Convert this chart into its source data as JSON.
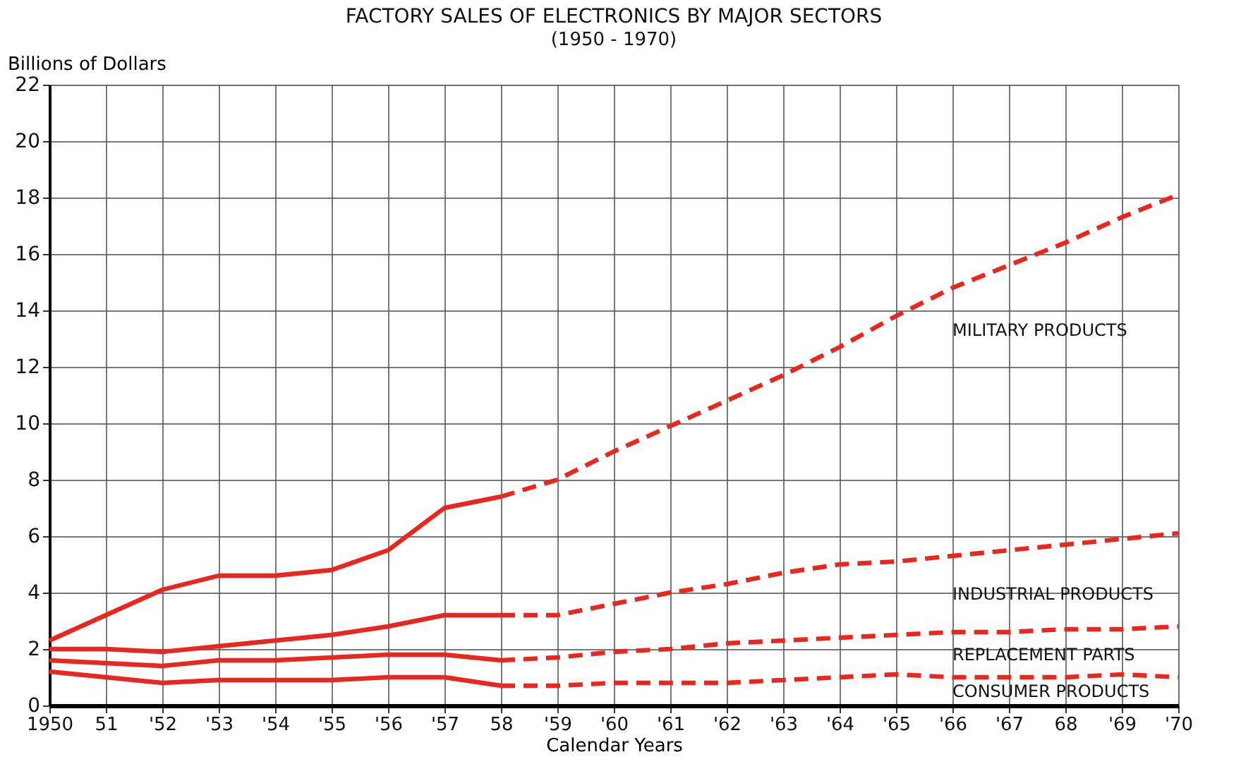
{
  "chart_data": {
    "type": "line",
    "title": "FACTORY SALES OF ELECTRONICS BY MAJOR SECTORS",
    "subtitle": "(1950 - 1970)",
    "xlabel": "Calendar Years",
    "ylabel": "Billions of Dollars",
    "xlim": [
      1950,
      1970
    ],
    "xticks": [
      {
        "value": 1950,
        "label": "1950"
      },
      {
        "value": 1951,
        "label": "51"
      },
      {
        "value": 1952,
        "label": "'52"
      },
      {
        "value": 1953,
        "label": "'53"
      },
      {
        "value": 1954,
        "label": "'54"
      },
      {
        "value": 1955,
        "label": "'55"
      },
      {
        "value": 1956,
        "label": "'56"
      },
      {
        "value": 1957,
        "label": "'57"
      },
      {
        "value": 1958,
        "label": "58"
      },
      {
        "value": 1959,
        "label": "'59"
      },
      {
        "value": 1960,
        "label": "'60"
      },
      {
        "value": 1961,
        "label": "'61"
      },
      {
        "value": 1962,
        "label": "'62"
      },
      {
        "value": 1963,
        "label": "'63"
      },
      {
        "value": 1964,
        "label": "'64"
      },
      {
        "value": 1965,
        "label": "'65"
      },
      {
        "value": 1966,
        "label": "'66"
      },
      {
        "value": 1967,
        "label": "'67"
      },
      {
        "value": 1968,
        "label": "68"
      },
      {
        "value": 1969,
        "label": "'69"
      },
      {
        "value": 1970,
        "label": "'70"
      }
    ],
    "ylim": [
      0,
      22
    ],
    "yticks": [
      0,
      2,
      4,
      6,
      8,
      10,
      12,
      14,
      16,
      18,
      20,
      22
    ],
    "grid": true,
    "series": [
      {
        "color": "#e8281e",
        "line_style": "solid",
        "x": [
          1950,
          1951,
          1952,
          1953,
          1954,
          1955,
          1956,
          1957,
          1958
        ],
        "values": [
          2.3,
          3.2,
          4.1,
          4.6,
          4.6,
          4.8,
          5.5,
          7.0,
          7.4
        ]
      },
      {
        "name": "MILITARY PRODUCTS",
        "color": "#e8281e",
        "line_style": "dashed",
        "x": [
          1958,
          1959,
          1960,
          1961,
          1962,
          1963,
          1964,
          1965,
          1966,
          1967,
          1968,
          1969,
          1970
        ],
        "values": [
          7.4,
          8.0,
          9.0,
          9.9,
          10.8,
          11.7,
          12.7,
          13.8,
          14.8,
          15.6,
          16.4,
          17.3,
          18.1
        ]
      },
      {
        "color": "#e8281e",
        "line_style": "solid",
        "x": [
          1950,
          1951,
          1952,
          1953,
          1954,
          1955,
          1956,
          1957,
          1958
        ],
        "values": [
          2.0,
          2.0,
          1.9,
          2.1,
          2.3,
          2.5,
          2.8,
          3.2,
          3.2
        ]
      },
      {
        "name": "INDUSTRIAL PRODUCTS",
        "color": "#e8281e",
        "line_style": "dashed",
        "x": [
          1958,
          1959,
          1960,
          1961,
          1962,
          1963,
          1964,
          1965,
          1966,
          1967,
          1968,
          1969,
          1970
        ],
        "values": [
          3.2,
          3.2,
          3.6,
          4.0,
          4.3,
          4.7,
          5.0,
          5.1,
          5.3,
          5.5,
          5.7,
          5.9,
          6.1
        ]
      },
      {
        "color": "#e8281e",
        "line_style": "solid",
        "x": [
          1950,
          1951,
          1952,
          1953,
          1954,
          1955,
          1956,
          1957,
          1958
        ],
        "values": [
          1.6,
          1.5,
          1.4,
          1.6,
          1.6,
          1.7,
          1.8,
          1.8,
          1.6
        ]
      },
      {
        "name": "REPLACEMENT PARTS",
        "color": "#e8281e",
        "line_style": "dashed",
        "x": [
          1958,
          1959,
          1960,
          1961,
          1962,
          1963,
          1964,
          1965,
          1966,
          1967,
          1968,
          1969,
          1970
        ],
        "values": [
          1.6,
          1.7,
          1.9,
          2.0,
          2.2,
          2.3,
          2.4,
          2.5,
          2.6,
          2.6,
          2.7,
          2.7,
          2.8
        ]
      },
      {
        "color": "#e8281e",
        "line_style": "solid",
        "x": [
          1950,
          1951,
          1952,
          1953,
          1954,
          1955,
          1956,
          1957,
          1958
        ],
        "values": [
          1.2,
          1.0,
          0.8,
          0.9,
          0.9,
          0.9,
          1.0,
          1.0,
          0.7
        ]
      },
      {
        "name": "CONSUMER PRODUCTS",
        "color": "#e8281e",
        "line_style": "dashed",
        "x": [
          1958,
          1959,
          1960,
          1961,
          1962,
          1963,
          1964,
          1965,
          1966,
          1967,
          1968,
          1969,
          1970
        ],
        "values": [
          0.7,
          0.7,
          0.8,
          0.8,
          0.8,
          0.9,
          1.0,
          1.1,
          1.0,
          1.0,
          1.0,
          1.1,
          1.0
        ]
      }
    ]
  }
}
